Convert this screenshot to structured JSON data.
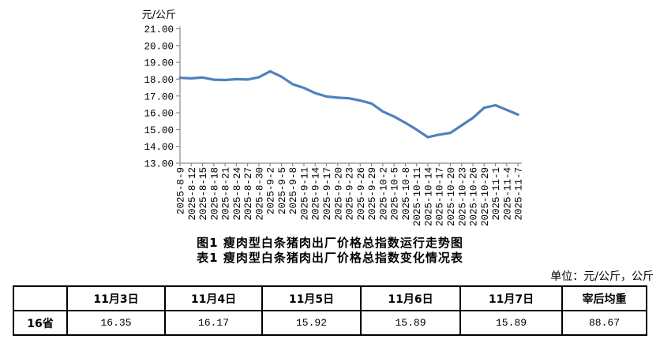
{
  "chart_data": {
    "type": "line",
    "title": "",
    "xlabel": "",
    "ylabel": "元/公斤",
    "ylim": [
      13,
      21
    ],
    "ytick_step": 1,
    "ytick_format_decimals": 2,
    "grid": false,
    "legend": "none",
    "line_color": "#4F81BD",
    "axis_color": "#8a8a8a",
    "categories": [
      "2025-8-9",
      "2025-8-12",
      "2025-8-15",
      "2025-8-18",
      "2025-8-21",
      "2025-8-24",
      "2025-8-27",
      "2025-8-30",
      "2025-9-2",
      "2025-9-5",
      "2025-9-8",
      "2025-9-11",
      "2025-9-14",
      "2025-9-17",
      "2025-9-20",
      "2025-9-23",
      "2025-9-26",
      "2025-9-29",
      "2025-10-2",
      "2025-10-5",
      "2025-10-8",
      "2025-10-11",
      "2025-10-14",
      "2025-10-17",
      "2025-10-20",
      "2025-10-23",
      "2025-10-26",
      "2025-10-29",
      "2025-11-1",
      "2025-11-4",
      "2025-11-7"
    ],
    "values": [
      18.08,
      18.05,
      18.1,
      17.97,
      17.95,
      18.0,
      17.98,
      18.12,
      18.47,
      18.15,
      17.7,
      17.48,
      17.17,
      16.97,
      16.9,
      16.86,
      16.73,
      16.55,
      16.08,
      15.78,
      15.4,
      15.0,
      14.55,
      14.7,
      14.8,
      15.25,
      15.7,
      16.3,
      16.45,
      16.17,
      15.89
    ]
  },
  "captions": {
    "figure_title": "图1 瘦肉型白条猪肉出厂价格总指数运行走势图",
    "table_title": "表1 瘦肉型白条猪肉出厂价格总指数变化情况表",
    "unit_note": "单位：元/公斤，公斤"
  },
  "table": {
    "corner": "",
    "columns": [
      "11月3日",
      "11月4日",
      "11月5日",
      "11月6日",
      "11月7日",
      "宰后均重"
    ],
    "rows": [
      {
        "label": "16省",
        "values": [
          "16.35",
          "16.17",
          "15.92",
          "15.89",
          "15.89",
          "88.67"
        ]
      }
    ]
  }
}
